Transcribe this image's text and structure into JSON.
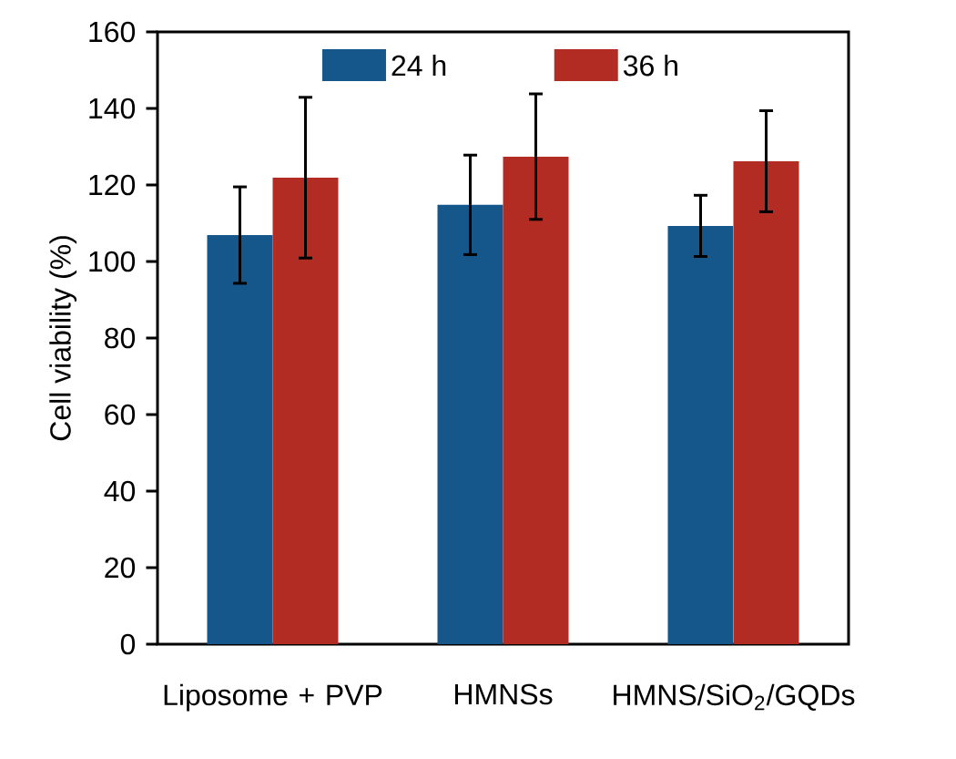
{
  "chart_data": {
    "type": "bar",
    "ylabel": "Cell viability (%)",
    "categories": [
      "Liposome + PVP",
      "HMNSs",
      "HMNS/SiO$_{2}$/GQDs"
    ],
    "series": [
      {
        "name": "24 h",
        "color": "#15568b",
        "values": [
          106.9,
          114.8,
          109.3
        ],
        "errors": [
          12.6,
          13,
          8
        ]
      },
      {
        "name": "36 h",
        "color": "#b22c24",
        "values": [
          121.9,
          127.4,
          126.2
        ],
        "errors": [
          21,
          16.4,
          13.2
        ]
      }
    ],
    "ylim": [
      0,
      160
    ],
    "yticks": [
      0,
      20,
      40,
      60,
      80,
      100,
      120,
      140,
      160
    ],
    "legend": "top",
    "grid": false
  }
}
